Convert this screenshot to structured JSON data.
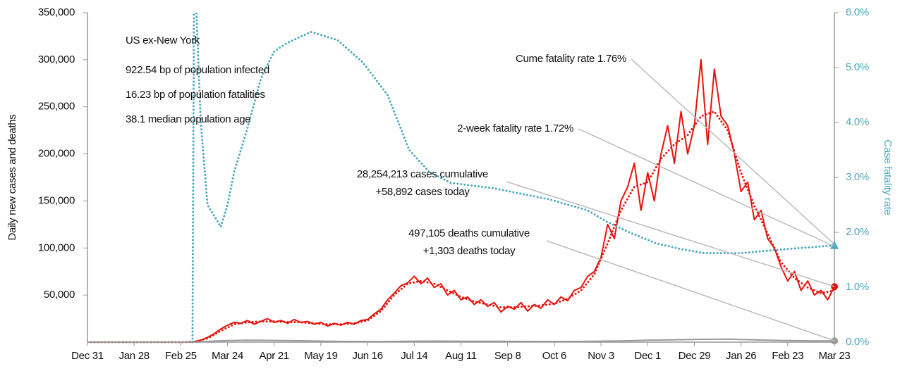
{
  "chart_data": {
    "type": "line",
    "info": {
      "title": "US ex-New York",
      "lines": [
        "922.54 bp of population infected",
        "16.23 bp of population fatalities",
        "38.1 median population age"
      ]
    },
    "y_label": "Daily new cases and deaths",
    "y2_label": "Case fatality rate",
    "annotations": [
      {
        "lines": [
          "Cume fatality rate 1.76%"
        ]
      },
      {
        "lines": [
          "2-week fatality rate 1.72%"
        ]
      },
      {
        "lines": [
          "28,254,213 cases cumulative",
          "+58,892 cases today"
        ]
      },
      {
        "lines": [
          "497,105 deaths cumulative",
          "+1,303 deaths today"
        ]
      }
    ],
    "xlim": [
      0,
      448
    ],
    "xticks": [
      {
        "value": 0,
        "label": "Dec 31"
      },
      {
        "value": 28,
        "label": "Jan 28"
      },
      {
        "value": 56,
        "label": "Feb 25"
      },
      {
        "value": 84,
        "label": "Mar 24"
      },
      {
        "value": 112,
        "label": "Apr 21"
      },
      {
        "value": 140,
        "label": "May 19"
      },
      {
        "value": 168,
        "label": "Jun 16"
      },
      {
        "value": 196,
        "label": "Jul 14"
      },
      {
        "value": 224,
        "label": "Aug 11"
      },
      {
        "value": 252,
        "label": "Sep 8"
      },
      {
        "value": 280,
        "label": "Oct 6"
      },
      {
        "value": 308,
        "label": "Nov 3"
      },
      {
        "value": 336,
        "label": "Dec 1"
      },
      {
        "value": 364,
        "label": "Dec 29"
      },
      {
        "value": 392,
        "label": "Jan 26"
      },
      {
        "value": 420,
        "label": "Feb 23"
      },
      {
        "value": 448,
        "label": "Mar 23"
      }
    ],
    "ylim": [
      0,
      350000
    ],
    "yticks": [
      {
        "value": 50000,
        "label": "50,000"
      },
      {
        "value": 100000,
        "label": "100,000"
      },
      {
        "value": 150000,
        "label": "150,000"
      },
      {
        "value": 200000,
        "label": "200,000"
      },
      {
        "value": 250000,
        "label": "250,000"
      },
      {
        "value": 300000,
        "label": "300,000"
      },
      {
        "value": 350000,
        "label": "350,000"
      }
    ],
    "y2lim": [
      0,
      6
    ],
    "y2ticks": [
      {
        "value": 0,
        "label": "0.0%"
      },
      {
        "value": 1,
        "label": "1.0%"
      },
      {
        "value": 2,
        "label": "2.0%"
      },
      {
        "value": 3,
        "label": "3.0%"
      },
      {
        "value": 4,
        "label": "4.0%"
      },
      {
        "value": 5,
        "label": "5.0%"
      },
      {
        "value": 6,
        "label": "6.0%"
      }
    ],
    "axis_color": "#999999",
    "y2_color": "#4aa8bd",
    "series": [
      {
        "color": "#e8120c",
        "style": "solid",
        "end_marker": "circle",
        "x": [
          0,
          4,
          8,
          12,
          16,
          20,
          24,
          28,
          32,
          36,
          40,
          44,
          48,
          52,
          56,
          60,
          64,
          68,
          72,
          76,
          80,
          84,
          88,
          92,
          96,
          100,
          104,
          108,
          112,
          116,
          120,
          124,
          128,
          132,
          136,
          140,
          144,
          148,
          152,
          156,
          160,
          164,
          168,
          172,
          176,
          180,
          184,
          188,
          192,
          196,
          200,
          204,
          208,
          212,
          216,
          220,
          224,
          228,
          232,
          236,
          240,
          244,
          248,
          252,
          256,
          260,
          264,
          268,
          272,
          276,
          280,
          284,
          288,
          292,
          296,
          300,
          304,
          308,
          312,
          316,
          320,
          324,
          328,
          332,
          336,
          340,
          344,
          348,
          352,
          356,
          360,
          364,
          368,
          372,
          376,
          380,
          384,
          388,
          392,
          396,
          400,
          404,
          408,
          412,
          416,
          420,
          424,
          428,
          432,
          436,
          440,
          444,
          448
        ],
        "values": [
          0,
          0,
          0,
          0,
          0,
          0,
          0,
          0,
          0,
          0,
          0,
          0,
          0,
          0,
          0,
          100,
          500,
          2000,
          5000,
          9000,
          14000,
          18000,
          21000,
          20000,
          23000,
          19000,
          22000,
          25000,
          21000,
          23000,
          20000,
          24000,
          21000,
          22000,
          19000,
          21000,
          17000,
          20000,
          18000,
          21000,
          19000,
          23000,
          24000,
          30000,
          35000,
          45000,
          52000,
          60000,
          63000,
          70000,
          62000,
          68000,
          58000,
          62000,
          50000,
          55000,
          45000,
          48000,
          40000,
          45000,
          38000,
          42000,
          32000,
          38000,
          35000,
          42000,
          33000,
          40000,
          36000,
          45000,
          40000,
          48000,
          44000,
          55000,
          58000,
          70000,
          75000,
          90000,
          125000,
          110000,
          150000,
          165000,
          190000,
          140000,
          180000,
          150000,
          200000,
          230000,
          190000,
          245000,
          200000,
          230000,
          300000,
          210000,
          290000,
          240000,
          230000,
          200000,
          160000,
          170000,
          130000,
          140000,
          110000,
          100000,
          80000,
          65000,
          75000,
          55000,
          65000,
          50000,
          55000,
          45000,
          58892
        ]
      },
      {
        "color": "#e8120c",
        "style": "dotted",
        "x": [
          0,
          8,
          16,
          24,
          32,
          40,
          48,
          56,
          64,
          72,
          80,
          88,
          96,
          104,
          112,
          120,
          128,
          136,
          144,
          152,
          160,
          168,
          176,
          184,
          192,
          200,
          208,
          216,
          224,
          232,
          240,
          248,
          256,
          264,
          272,
          280,
          288,
          296,
          304,
          312,
          320,
          328,
          336,
          344,
          352,
          360,
          368,
          376,
          384,
          392,
          400,
          408,
          416,
          424,
          432,
          440,
          448
        ],
        "values": [
          0,
          0,
          0,
          0,
          0,
          0,
          0,
          0,
          300,
          4000,
          12000,
          19000,
          21000,
          22000,
          22000,
          21500,
          21000,
          20000,
          19000,
          19000,
          20000,
          23000,
          33000,
          50000,
          62000,
          65000,
          62000,
          55000,
          48000,
          43000,
          40000,
          37000,
          37000,
          38000,
          39000,
          41000,
          46000,
          55000,
          72000,
          105000,
          140000,
          165000,
          170000,
          195000,
          210000,
          220000,
          240000,
          245000,
          225000,
          180000,
          145000,
          115000,
          85000,
          68000,
          58000,
          52000,
          55000
        ]
      },
      {
        "color": "#999999",
        "style": "solid",
        "end_marker": "circle",
        "x": [
          0,
          16,
          32,
          48,
          64,
          80,
          96,
          112,
          128,
          144,
          160,
          176,
          192,
          208,
          224,
          240,
          256,
          272,
          288,
          304,
          320,
          336,
          352,
          368,
          384,
          400,
          416,
          432,
          448
        ],
        "values": [
          0,
          0,
          0,
          0,
          0,
          1500,
          2000,
          1800,
          1500,
          1000,
          700,
          600,
          900,
          1100,
          1000,
          900,
          800,
          700,
          700,
          900,
          1300,
          2000,
          2500,
          3000,
          3200,
          2500,
          1800,
          1400,
          1303
        ]
      },
      {
        "color": "#4aa8bd",
        "style": "dotted",
        "axis": "y2",
        "end_marker": "triangle",
        "x": [
          63,
          64,
          68,
          72,
          76,
          80,
          84,
          88,
          96,
          104,
          112,
          120,
          134,
          150,
          165,
          180,
          193,
          205,
          218,
          244,
          277,
          300,
          311,
          325,
          341,
          355,
          370,
          392,
          413,
          430,
          448
        ],
        "values": [
          0,
          7,
          4,
          2.5,
          2.3,
          2.1,
          2.5,
          3.1,
          3.9,
          4.8,
          5.3,
          5.45,
          5.65,
          5.5,
          5.1,
          4.5,
          3.5,
          3.1,
          2.9,
          2.8,
          2.6,
          2.4,
          2.2,
          2.0,
          1.8,
          1.7,
          1.62,
          1.62,
          1.68,
          1.72,
          1.76
        ]
      }
    ]
  }
}
